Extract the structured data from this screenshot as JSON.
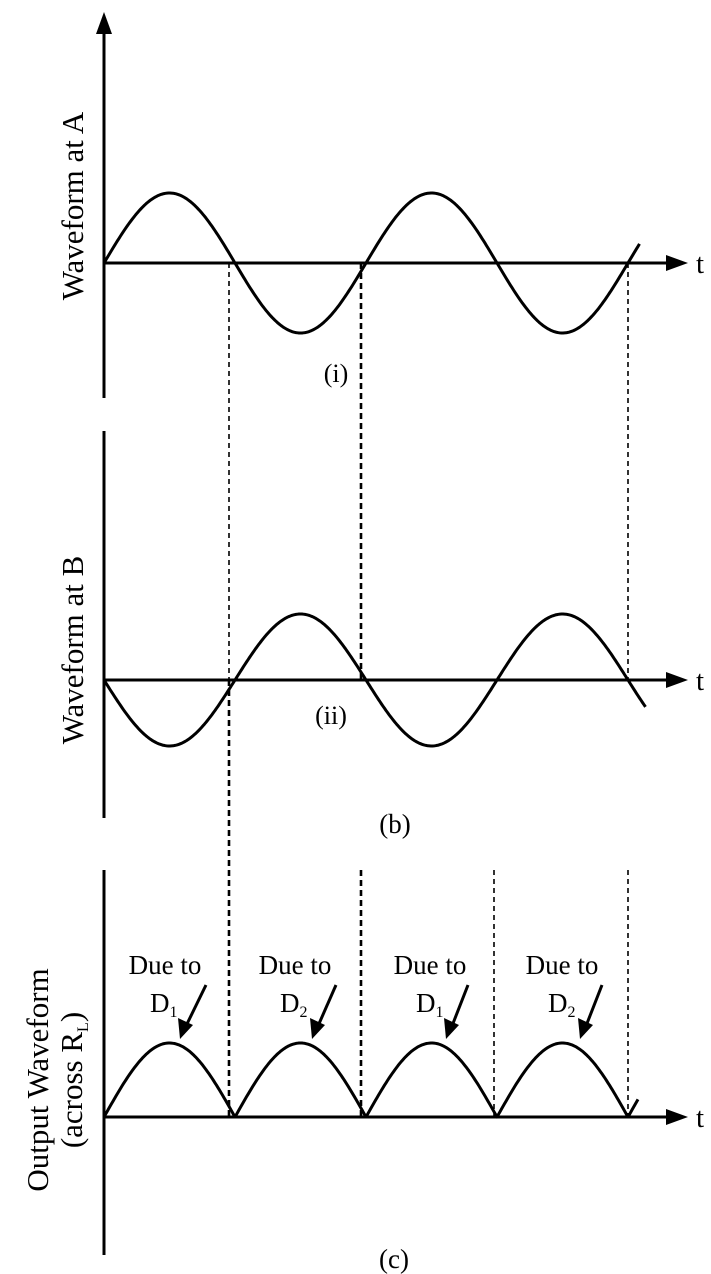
{
  "panel_a": {
    "ylabel": "Waveform at A",
    "xlabel": "t",
    "tag": "(i)"
  },
  "panel_b": {
    "ylabel": "Waveform at B",
    "xlabel": "t",
    "tag": "(ii)",
    "caption": "(b)"
  },
  "panel_c": {
    "ylabel_line1": "Output Waveform",
    "ylabel_line2_prefix": "(across R",
    "ylabel_line2_sub": "L",
    "ylabel_line2_suffix": ")",
    "xlabel": "t",
    "caption": "(c)",
    "pulses": [
      {
        "line1": "Due to",
        "letter": "D",
        "sub": "1"
      },
      {
        "line1": "Due to",
        "letter": "D",
        "sub": "2"
      },
      {
        "line1": "Due to",
        "letter": "D",
        "sub": "1"
      },
      {
        "line1": "Due to",
        "letter": "D",
        "sub": "2"
      }
    ]
  },
  "waves": {
    "wave_a": "sine",
    "wave_b": "inverted-sine",
    "output": "full-wave-rectified"
  }
}
